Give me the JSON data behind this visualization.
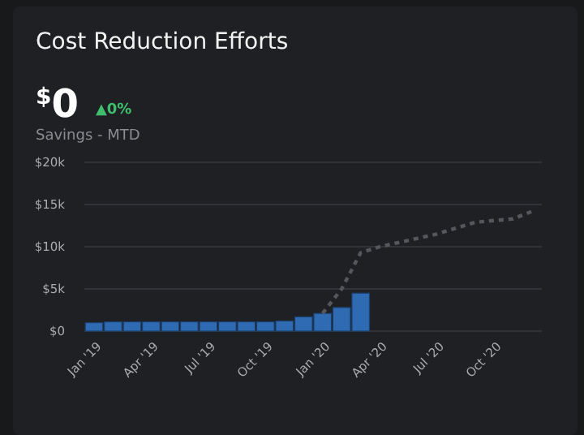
{
  "chart_data": {
    "type": "bar",
    "title": "Cost Reduction Efforts",
    "annotations": [
      "$^{$}$0",
      "▲0%",
      "Savings - MTD"
    ],
    "categories": [
      "Jan '19",
      null,
      null,
      "Apr '19",
      null,
      null,
      "Jul '19",
      null,
      null,
      "Oct '19",
      null,
      null,
      "Jan '20",
      null,
      null,
      "Apr '20",
      null,
      null,
      "Jul '20",
      null,
      null,
      "Oct '20",
      null,
      null
    ],
    "series": [
      {
        "color": "#2e6bb3",
        "values": [
          1.0,
          1.1,
          1.1,
          1.1,
          1.1,
          1.1,
          1.1,
          1.1,
          1.1,
          1.1,
          1.2,
          1.7,
          2.1,
          2.8,
          4.5,
          null,
          null,
          null,
          null,
          null,
          null,
          null,
          null,
          null
        ]
      },
      {
        "type": "line",
        "color": "#55575c",
        "line_style": "dotted",
        "values": [
          null,
          null,
          null,
          null,
          null,
          null,
          null,
          null,
          null,
          null,
          null,
          null,
          2.1,
          5.0,
          9.3,
          10.0,
          10.5,
          11.0,
          11.5,
          12.2,
          12.9,
          13.1,
          13.3,
          14.2
        ]
      }
    ],
    "ylim": [
      0,
      20
    ],
    "yticks": [
      {
        "value": 0,
        "label": "$0"
      },
      {
        "value": 5,
        "label": "$5k"
      },
      {
        "value": 10,
        "label": "$10k"
      },
      {
        "value": 15,
        "label": "$15k"
      },
      {
        "value": 20,
        "label": "$20k"
      }
    ],
    "grid": "y"
  }
}
